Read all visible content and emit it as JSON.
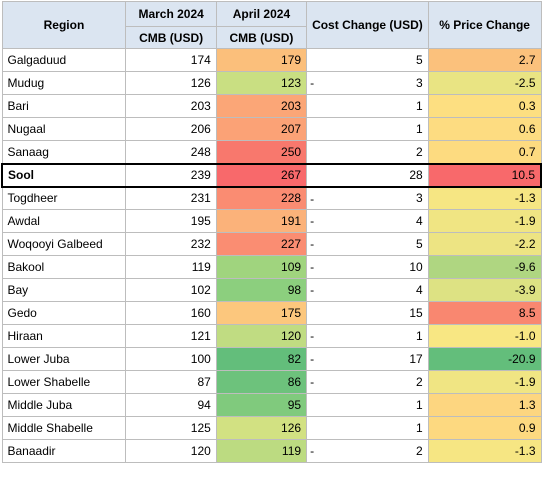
{
  "headers": {
    "region": "Region",
    "march": "March 2024",
    "april": "April 2024",
    "cmb_march": "CMB  (USD)",
    "cmb_april": "CMB (USD)",
    "cost_change": "Cost Change (USD)",
    "pct_change": "% Price Change"
  },
  "rows": [
    {
      "region": "Galgaduud",
      "march": "174",
      "april": "179",
      "cost_neg": false,
      "cost": "5",
      "pct": "2.7",
      "april_color": "#fbbf7b",
      "pct_color": "#fbc17c"
    },
    {
      "region": "Mudug",
      "march": "126",
      "april": "123",
      "cost_neg": true,
      "cost": "3",
      "pct": "-2.5",
      "april_color": "#c9df82",
      "pct_color": "#e9e483"
    },
    {
      "region": "Bari",
      "march": "203",
      "april": "203",
      "cost_neg": false,
      "cost": "1",
      "pct": "0.3",
      "april_color": "#fba677",
      "pct_color": "#fddf81"
    },
    {
      "region": "Nugaal",
      "march": "206",
      "april": "207",
      "cost_neg": false,
      "cost": "1",
      "pct": "0.6",
      "april_color": "#fba276",
      "pct_color": "#fddc81"
    },
    {
      "region": "Sanaag",
      "march": "248",
      "april": "250",
      "cost_neg": false,
      "cost": "2",
      "pct": "0.7",
      "april_color": "#f8786d",
      "pct_color": "#fddb80"
    },
    {
      "region": "Sool",
      "march": "239",
      "april": "267",
      "cost_neg": false,
      "cost": "28",
      "pct": "10.5",
      "april_color": "#f8696b",
      "pct_color": "#f8696b",
      "highlight": true
    },
    {
      "region": "Togdheer",
      "march": "231",
      "april": "228",
      "cost_neg": true,
      "cost": "3",
      "pct": "-1.3",
      "april_color": "#fa8c72",
      "pct_color": "#f6e683"
    },
    {
      "region": "Awdal",
      "march": "195",
      "april": "191",
      "cost_neg": true,
      "cost": "4",
      "pct": "-1.9",
      "april_color": "#fbb27a",
      "pct_color": "#f0e583"
    },
    {
      "region": "Woqooyi Galbeed",
      "march": "232",
      "april": "227",
      "cost_neg": true,
      "cost": "5",
      "pct": "-2.2",
      "april_color": "#fa8d72",
      "pct_color": "#ede483"
    },
    {
      "region": "Bakool",
      "march": "119",
      "april": "109",
      "cost_neg": true,
      "cost": "10",
      "pct": "-9.6",
      "april_color": "#a0d47e",
      "pct_color": "#afd681"
    },
    {
      "region": "Bay",
      "march": "102",
      "april": "98",
      "cost_neg": true,
      "cost": "4",
      "pct": "-3.9",
      "april_color": "#8ccf7e",
      "pct_color": "#dde283"
    },
    {
      "region": "Gedo",
      "march": "160",
      "april": "175",
      "cost_neg": false,
      "cost": "15",
      "pct": "8.5",
      "april_color": "#fcc77d",
      "pct_color": "#f98770"
    },
    {
      "region": "Hiraan",
      "march": "121",
      "april": "120",
      "cost_neg": true,
      "cost": "1",
      "pct": "-1.0",
      "april_color": "#c0dc82",
      "pct_color": "#f8e783"
    },
    {
      "region": "Lower Juba",
      "march": "100",
      "april": "82",
      "cost_neg": true,
      "cost": "17",
      "pct": "-20.9",
      "april_color": "#63be7b",
      "pct_color": "#63be7b"
    },
    {
      "region": "Lower Shabelle",
      "march": "87",
      "april": "86",
      "cost_neg": true,
      "cost": "2",
      "pct": "-1.9",
      "april_color": "#6dc27c",
      "pct_color": "#f0e583"
    },
    {
      "region": "Middle Juba",
      "march": "94",
      "april": "95",
      "cost_neg": false,
      "cost": "1",
      "pct": "1.3",
      "april_color": "#80ca7d",
      "pct_color": "#fdd680"
    },
    {
      "region": "Middle Shabelle",
      "march": "125",
      "april": "126",
      "cost_neg": false,
      "cost": "1",
      "pct": "0.9",
      "april_color": "#d2e182",
      "pct_color": "#fdd980"
    },
    {
      "region": "Banaadir",
      "march": "120",
      "april": "119",
      "cost_neg": true,
      "cost": "2",
      "pct": "-1.3",
      "april_color": "#bcdb81",
      "pct_color": "#f6e683"
    }
  ]
}
